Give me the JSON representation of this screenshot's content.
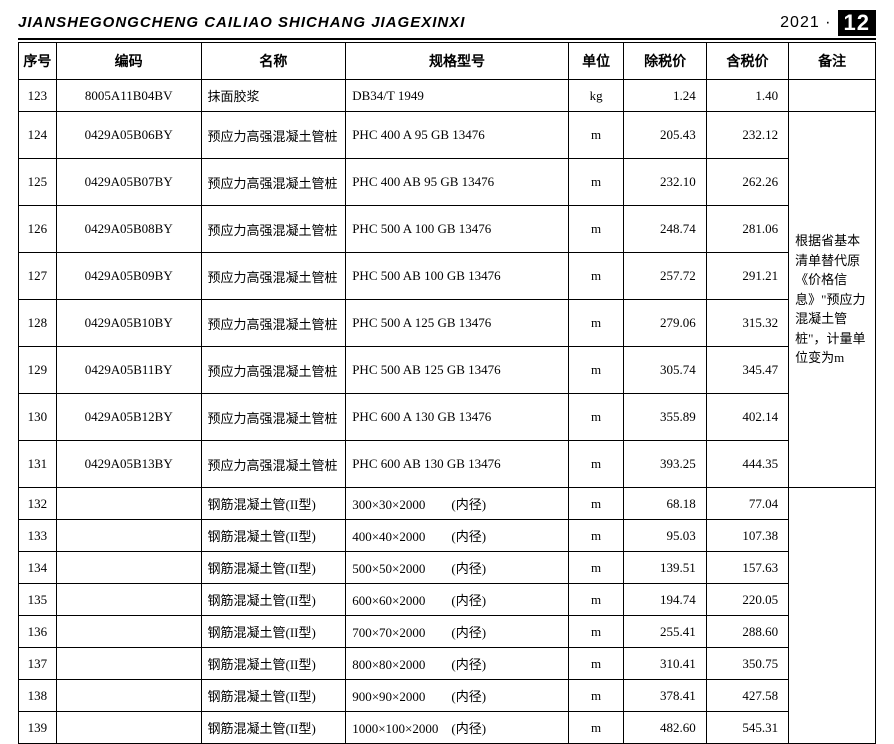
{
  "header": {
    "pinyin": "JIANSHEGONGCHENG  CAILIAO  SHICHANG  JIAGEXINXI",
    "year_label": "2021 ·",
    "issue": "12"
  },
  "columns": {
    "seq": "序号",
    "code": "编码",
    "name": "名称",
    "spec": "规格型号",
    "unit": "单位",
    "price_ex": "除税价",
    "price_inc": "含税价",
    "note": "备注"
  },
  "notes": {
    "group1": "根据省基本清单替代原《价格信息》\"预应力混凝土管桩\"，计量单位变为m"
  },
  "rows": [
    {
      "seq": "123",
      "code": "8005A11B04BV",
      "name": "抹面胶浆",
      "spec": "DB34/T 1949",
      "unit": "kg",
      "p1": "1.24",
      "p2": "1.40",
      "tall": false,
      "note_span": 1,
      "note_key": null
    },
    {
      "seq": "124",
      "code": "0429A05B06BY",
      "name": "预应力高强混凝土管桩",
      "spec": "PHC 400 A 95 GB 13476",
      "unit": "m",
      "p1": "205.43",
      "p2": "232.12",
      "tall": true,
      "note_span": 8,
      "note_key": "group1"
    },
    {
      "seq": "125",
      "code": "0429A05B07BY",
      "name": "预应力高强混凝土管桩",
      "spec": "PHC 400 AB 95 GB 13476",
      "unit": "m",
      "p1": "232.10",
      "p2": "262.26",
      "tall": true,
      "note_span": 0
    },
    {
      "seq": "126",
      "code": "0429A05B08BY",
      "name": "预应力高强混凝土管桩",
      "spec": "PHC 500 A 100 GB 13476",
      "unit": "m",
      "p1": "248.74",
      "p2": "281.06",
      "tall": true,
      "note_span": 0
    },
    {
      "seq": "127",
      "code": "0429A05B09BY",
      "name": "预应力高强混凝土管桩",
      "spec": "PHC 500 AB 100 GB 13476",
      "unit": "m",
      "p1": "257.72",
      "p2": "291.21",
      "tall": true,
      "note_span": 0
    },
    {
      "seq": "128",
      "code": "0429A05B10BY",
      "name": "预应力高强混凝土管桩",
      "spec": "PHC 500 A 125 GB 13476",
      "unit": "m",
      "p1": "279.06",
      "p2": "315.32",
      "tall": true,
      "note_span": 0
    },
    {
      "seq": "129",
      "code": "0429A05B11BY",
      "name": "预应力高强混凝土管桩",
      "spec": "PHC 500 AB 125 GB 13476",
      "unit": "m",
      "p1": "305.74",
      "p2": "345.47",
      "tall": true,
      "note_span": 0
    },
    {
      "seq": "130",
      "code": "0429A05B12BY",
      "name": "预应力高强混凝土管桩",
      "spec": "PHC 600 A 130 GB 13476",
      "unit": "m",
      "p1": "355.89",
      "p2": "402.14",
      "tall": true,
      "note_span": 0
    },
    {
      "seq": "131",
      "code": "0429A05B13BY",
      "name": "预应力高强混凝土管桩",
      "spec": "PHC 600 AB 130 GB 13476",
      "unit": "m",
      "p1": "393.25",
      "p2": "444.35",
      "tall": true,
      "note_span": 0
    },
    {
      "seq": "132",
      "code": "",
      "name": "钢筋混凝土管(II型)",
      "spec": "300×30×2000　　(内径)",
      "unit": "m",
      "p1": "68.18",
      "p2": "77.04",
      "tall": false,
      "note_span": 8,
      "note_key": null
    },
    {
      "seq": "133",
      "code": "",
      "name": "钢筋混凝土管(II型)",
      "spec": "400×40×2000　　(内径)",
      "unit": "m",
      "p1": "95.03",
      "p2": "107.38",
      "tall": false,
      "note_span": 0
    },
    {
      "seq": "134",
      "code": "",
      "name": "钢筋混凝土管(II型)",
      "spec": "500×50×2000　　(内径)",
      "unit": "m",
      "p1": "139.51",
      "p2": "157.63",
      "tall": false,
      "note_span": 0
    },
    {
      "seq": "135",
      "code": "",
      "name": "钢筋混凝土管(II型)",
      "spec": "600×60×2000　　(内径)",
      "unit": "m",
      "p1": "194.74",
      "p2": "220.05",
      "tall": false,
      "note_span": 0
    },
    {
      "seq": "136",
      "code": "",
      "name": "钢筋混凝土管(II型)",
      "spec": "700×70×2000　　(内径)",
      "unit": "m",
      "p1": "255.41",
      "p2": "288.60",
      "tall": false,
      "note_span": 0
    },
    {
      "seq": "137",
      "code": "",
      "name": "钢筋混凝土管(II型)",
      "spec": "800×80×2000　　(内径)",
      "unit": "m",
      "p1": "310.41",
      "p2": "350.75",
      "tall": false,
      "note_span": 0
    },
    {
      "seq": "138",
      "code": "",
      "name": "钢筋混凝土管(II型)",
      "spec": "900×90×2000　　(内径)",
      "unit": "m",
      "p1": "378.41",
      "p2": "427.58",
      "tall": false,
      "note_span": 0
    },
    {
      "seq": "139",
      "code": "",
      "name": "钢筋混凝土管(II型)",
      "spec": "1000×100×2000　(内径)",
      "unit": "m",
      "p1": "482.60",
      "p2": "545.31",
      "tall": false,
      "note_span": 0
    }
  ],
  "style": {
    "border_color": "#000000",
    "background": "#ffffff",
    "header_font": "SimHei",
    "body_font": "SimSun",
    "font_size_body": 13,
    "font_size_header": 14
  }
}
